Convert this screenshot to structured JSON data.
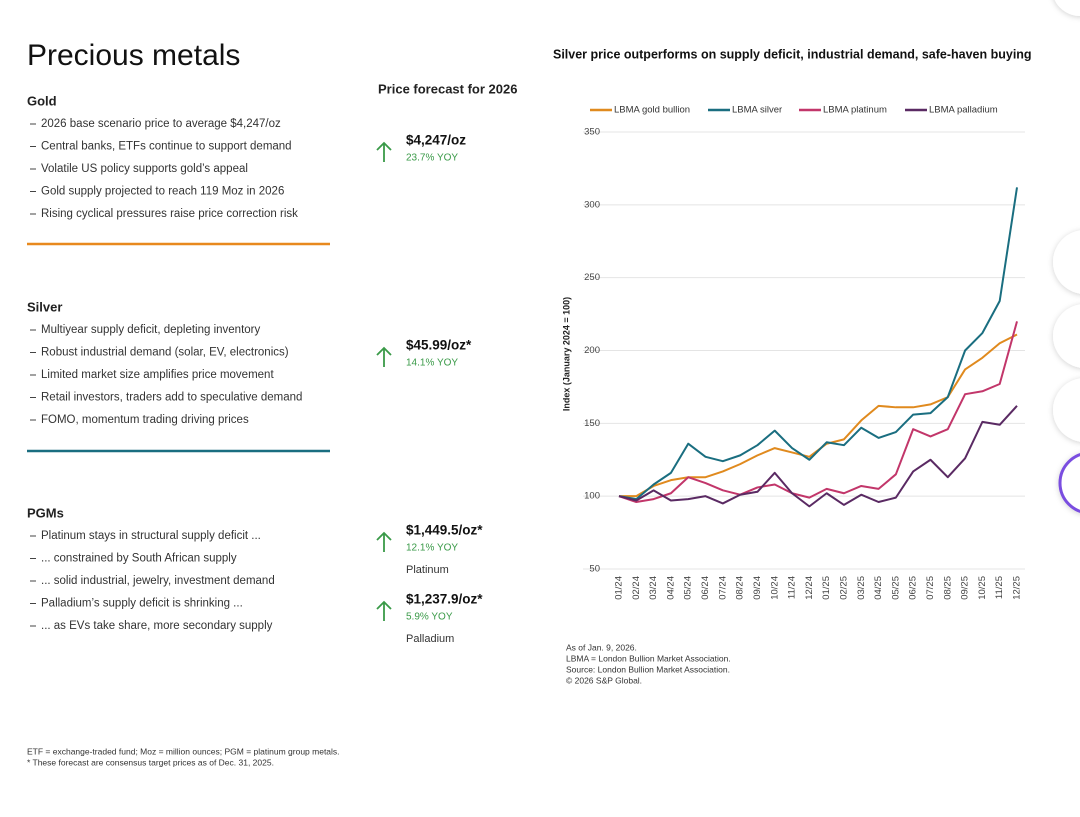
{
  "header": {
    "title": "Precious metals",
    "forecast_heading": "Price forecast for 2026"
  },
  "sections": [
    {
      "name": "Gold",
      "bullets": [
        "2026 base scenario price to average $4,247/oz",
        "Central banks, ETFs continue to support demand",
        "Volatile US policy supports gold’s appeal",
        "Gold supply projected to reach 119 Moz in 2026",
        "Rising cyclical pressures raise price correction risk"
      ],
      "forecasts": [
        {
          "price": "$4,247/oz",
          "yoy": "23.7% YOY"
        }
      ]
    },
    {
      "name": "Silver",
      "bullets": [
        "Multiyear supply deficit, depleting inventory",
        "Robust industrial demand (solar, EV, electronics)",
        "Limited market size amplifies price movement",
        "Retail investors, traders add to speculative demand",
        "FOMO, momentum trading driving prices"
      ],
      "forecasts": [
        {
          "price": "$45.99/oz*",
          "yoy": "14.1% YOY"
        }
      ]
    },
    {
      "name": "PGMs",
      "bullets": [
        "Platinum stays in structural supply deficit ...",
        "... constrained by South African supply",
        "... solid industrial, jewelry, investment demand",
        "Palladium’s supply deficit is shrinking ...",
        "... as EVs take share, more secondary supply"
      ],
      "forecasts": [
        {
          "price": "$1,449.5/oz*",
          "yoy": "12.1% YOY",
          "metal": "Platinum"
        },
        {
          "price": "$1,237.9/oz*",
          "yoy": "5.9% YOY",
          "metal": "Palladium"
        }
      ]
    }
  ],
  "footnotes": [
    "ETF = exchange-traded fund; Moz = million ounces; PGM = platinum group metals.",
    "* These forecast are consensus target prices as of Dec. 31, 2025."
  ],
  "chart_data": {
    "type": "line",
    "title": "Silver price outperforms on supply deficit, industrial demand, safe-haven buying",
    "y_label": "Index (January 2024 = 100)",
    "categories": [
      "01/24",
      "02/24",
      "03/24",
      "04/24",
      "05/24",
      "06/24",
      "07/24",
      "08/24",
      "09/24",
      "10/24",
      "11/24",
      "12/24",
      "01/25",
      "02/25",
      "03/25",
      "04/25",
      "05/25",
      "06/25",
      "07/25",
      "08/25",
      "09/25",
      "10/25",
      "11/25",
      "12/25"
    ],
    "series": [
      {
        "name": "LBMA gold bullion",
        "color": "#e08a1e",
        "values": [
          100,
          100,
          107,
          111,
          113,
          113,
          117,
          122,
          128,
          133,
          130,
          127,
          136,
          139,
          152,
          162,
          161,
          161,
          163,
          168,
          187,
          195,
          205,
          211
        ]
      },
      {
        "name": "LBMA silver",
        "color": "#1a6e80",
        "values": [
          100,
          98,
          108,
          116,
          136,
          127,
          124,
          128,
          135,
          145,
          133,
          125,
          137,
          135,
          147,
          140,
          144,
          156,
          157,
          168,
          200,
          212,
          234,
          312
        ]
      },
      {
        "name": "LBMA platinum",
        "color": "#c2366a",
        "values": [
          100,
          96,
          98,
          102,
          113,
          109,
          104,
          101,
          106,
          108,
          102,
          99,
          105,
          102,
          107,
          105,
          115,
          146,
          141,
          146,
          170,
          172,
          177,
          220
        ]
      },
      {
        "name": "LBMA palladium",
        "color": "#5a2a63",
        "values": [
          100,
          97,
          104,
          97,
          98,
          100,
          95,
          101,
          103,
          116,
          102,
          93,
          102,
          94,
          101,
          96,
          99,
          117,
          125,
          113,
          126,
          151,
          149,
          162
        ]
      }
    ],
    "ylim": [
      50,
      350
    ],
    "yticks": [
      50,
      100,
      150,
      200,
      250,
      300,
      350
    ],
    "grid": true,
    "legend": "top",
    "notes": [
      "As of Jan. 9, 2026.",
      "LBMA = London Bullion Market Association.",
      "Source: London Bullion Market Association.",
      "© 2026 S&P Global."
    ]
  }
}
